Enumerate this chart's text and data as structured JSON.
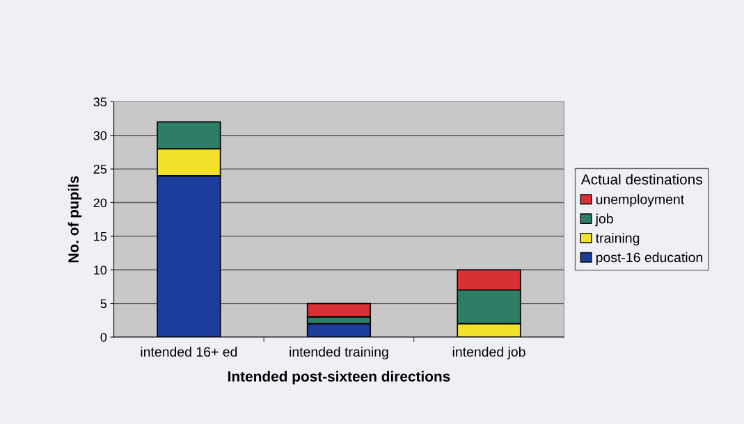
{
  "chart_data": {
    "type": "bar",
    "stacked": true,
    "xlabel": "Intended post-sixteen directions",
    "ylabel": "No. of pupils",
    "legend_title": "Actual destinations",
    "categories": [
      "intended 16+ ed",
      "intended training",
      "intended job"
    ],
    "series": [
      {
        "name": "post-16 education",
        "color": "#1c3d9c",
        "values": [
          24,
          2,
          0
        ]
      },
      {
        "name": "training",
        "color": "#f2e12a",
        "values": [
          4,
          0,
          2
        ]
      },
      {
        "name": "job",
        "color": "#2e7d66",
        "values": [
          4,
          1,
          5
        ]
      },
      {
        "name": "unemployment",
        "color": "#d93035",
        "values": [
          0,
          2,
          3
        ]
      }
    ],
    "ylim": [
      0,
      35
    ],
    "yticks": [
      0,
      5,
      10,
      15,
      20,
      25,
      30,
      35
    ],
    "grid": "y",
    "legend": "right"
  }
}
